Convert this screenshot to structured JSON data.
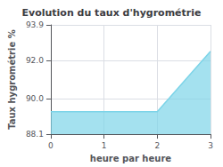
{
  "chart_data": {
    "type": "area",
    "title": "Evolution du taux d'hygrométrie",
    "xlabel": "heure par heure",
    "ylabel": "Taux hygrométrie %",
    "x": [
      0,
      1,
      2,
      3
    ],
    "values": [
      89.3,
      89.3,
      89.3,
      92.5
    ],
    "color": "#7dd4e8",
    "xlim": [
      0,
      3
    ],
    "xticks": [
      0,
      1,
      2,
      3
    ],
    "ylim": [
      88.1,
      93.9
    ],
    "yticks": [
      88.1,
      {
        "value": 90.0,
        "label": "90.0"
      },
      {
        "value": 92.0,
        "label": "92.0"
      },
      93.9
    ],
    "grid": true
  }
}
